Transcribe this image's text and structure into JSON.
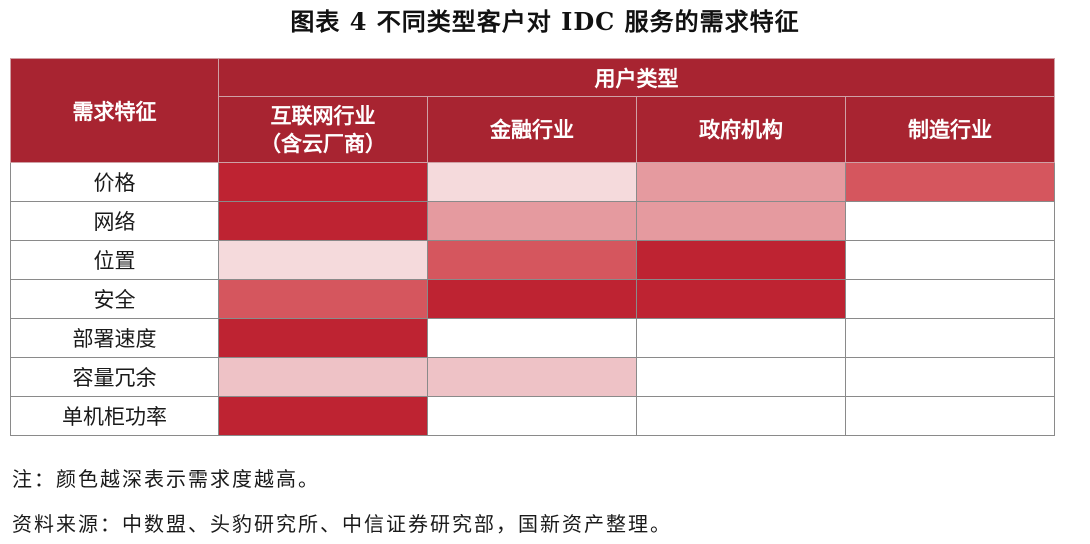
{
  "title": "图表 4  不同类型客户对 IDC 服务的需求特征",
  "table": {
    "row_header": "需求特征",
    "group_header": "用户类型",
    "columns": [
      "互联网行业\n（含云厂商）",
      "金融行业",
      "政府机构",
      "制造行业"
    ],
    "rows": [
      {
        "label": "价格",
        "levels": [
          4,
          1,
          2,
          3
        ]
      },
      {
        "label": "网络",
        "levels": [
          4,
          2,
          2,
          0
        ]
      },
      {
        "label": "位置",
        "levels": [
          1,
          3,
          4,
          0
        ]
      },
      {
        "label": "安全",
        "levels": [
          3,
          4,
          4,
          0
        ]
      },
      {
        "label": "部署速度",
        "levels": [
          4,
          0,
          0,
          0
        ]
      },
      {
        "label": "容量冗余",
        "levels": [
          1.5,
          1.5,
          0,
          0
        ]
      },
      {
        "label": "单机柜功率",
        "levels": [
          4,
          0,
          0,
          0
        ]
      }
    ],
    "level_colors": {
      "0": "#ffffff",
      "1": "#f5dadc",
      "1.5": "#eec2c6",
      "2": "#e59a9f",
      "3": "#d5565e",
      "4": "#be2332"
    }
  },
  "note": "注：颜色越深表示需求度越高。",
  "source": "资料来源：中数盟、头豹研究所、中信证券研究部，国新资产整理。"
}
